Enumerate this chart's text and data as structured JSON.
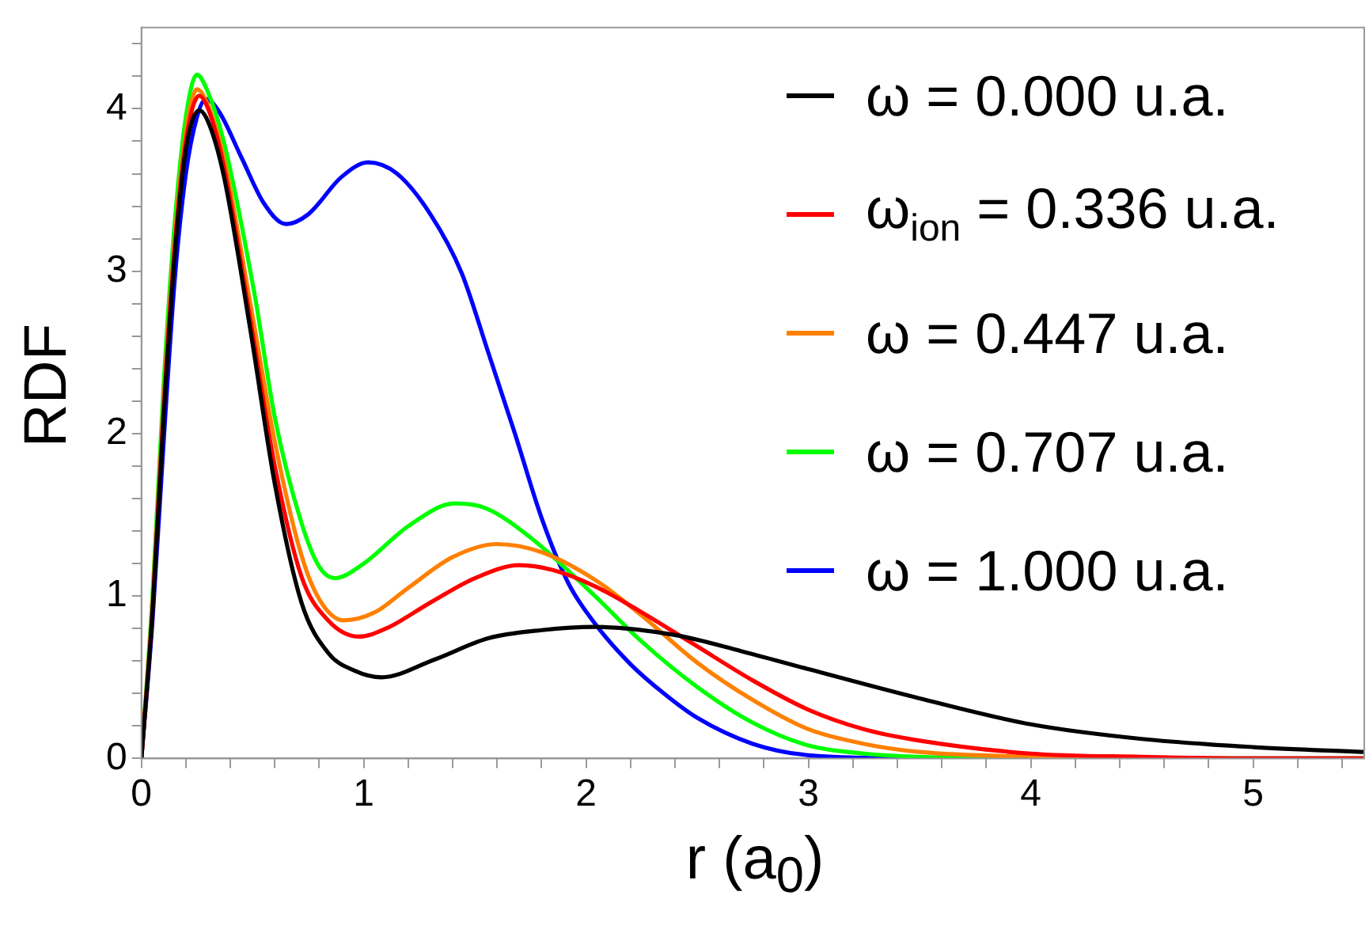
{
  "chart_data": {
    "type": "line",
    "xlabel": "r (a$_{0}$)",
    "ylabel": "RDF",
    "xlim": [
      0,
      5.5
    ],
    "ylim": [
      0,
      4.5
    ],
    "xticks": [
      0,
      {
        "value": 0.2,
        "label": null
      },
      {
        "value": 0.4,
        "label": null
      },
      {
        "value": 0.6,
        "label": null
      },
      {
        "value": 0.8,
        "label": null
      },
      1,
      {
        "value": 1.2,
        "label": null
      },
      {
        "value": 1.4,
        "label": null
      },
      {
        "value": 1.6,
        "label": null
      },
      {
        "value": 1.8,
        "label": null
      },
      2,
      {
        "value": 2.2,
        "label": null
      },
      {
        "value": 2.4,
        "label": null
      },
      {
        "value": 2.6,
        "label": null
      },
      {
        "value": 2.8,
        "label": null
      },
      3,
      {
        "value": 3.2,
        "label": null
      },
      {
        "value": 3.4,
        "label": null
      },
      {
        "value": 3.6,
        "label": null
      },
      {
        "value": 3.8,
        "label": null
      },
      4,
      {
        "value": 4.2,
        "label": null
      },
      {
        "value": 4.4,
        "label": null
      },
      {
        "value": 4.6,
        "label": null
      },
      {
        "value": 4.8,
        "label": null
      },
      5,
      {
        "value": 5.2,
        "label": null
      },
      {
        "value": 5.4,
        "label": null
      }
    ],
    "yticks": [
      0,
      {
        "value": 0.2,
        "label": null
      },
      {
        "value": 0.4,
        "label": null
      },
      {
        "value": 0.6,
        "label": null
      },
      {
        "value": 0.8,
        "label": null
      },
      1,
      {
        "value": 1.2,
        "label": null
      },
      {
        "value": 1.4,
        "label": null
      },
      {
        "value": 1.6,
        "label": null
      },
      {
        "value": 1.8,
        "label": null
      },
      2,
      {
        "value": 2.2,
        "label": null
      },
      {
        "value": 2.4,
        "label": null
      },
      {
        "value": 2.6,
        "label": null
      },
      {
        "value": 2.8,
        "label": null
      },
      3,
      {
        "value": 3.2,
        "label": null
      },
      {
        "value": 3.4,
        "label": null
      },
      {
        "value": 3.6,
        "label": null
      },
      {
        "value": 3.8,
        "label": null
      },
      4,
      {
        "value": 4.2,
        "label": null
      },
      {
        "value": 4.4,
        "label": null
      }
    ],
    "legend": "top right",
    "marker": "none",
    "line_style": "solid",
    "series": [
      {
        "name": "ω = 0.000 u.a.",
        "color": "#000000",
        "x": [
          0,
          0.05,
          0.1,
          0.15,
          0.2,
          0.26,
          0.3,
          0.37,
          0.49,
          0.6,
          0.72,
          0.84,
          0.96,
          1.08,
          1.32,
          1.56,
          1.8,
          2.04,
          2.4,
          2.7,
          3.0,
          3.5,
          4.0,
          4.5,
          5.0,
          5.5
        ],
        "values": [
          0,
          0.9,
          2.1,
          3.1,
          3.75,
          3.99,
          3.92,
          3.59,
          2.64,
          1.69,
          0.96,
          0.65,
          0.54,
          0.5,
          0.61,
          0.74,
          0.79,
          0.81,
          0.76,
          0.66,
          0.55,
          0.37,
          0.21,
          0.12,
          0.07,
          0.04
        ]
      },
      {
        "name": "ω$_{ion}$ = 0.336 u.a.",
        "color": "#ff0000",
        "x": [
          0,
          0.05,
          0.1,
          0.15,
          0.2,
          0.26,
          0.3,
          0.37,
          0.49,
          0.6,
          0.72,
          0.84,
          0.98,
          1.1,
          1.3,
          1.5,
          1.7,
          1.85,
          2.04,
          2.25,
          2.5,
          2.75,
          3.0,
          3.25,
          3.5,
          4.0,
          4.5,
          5.0,
          5.5
        ],
        "values": [
          0,
          0.92,
          2.15,
          3.15,
          3.8,
          4.08,
          4.0,
          3.65,
          2.7,
          1.8,
          1.12,
          0.85,
          0.75,
          0.8,
          0.96,
          1.11,
          1.19,
          1.16,
          1.06,
          0.9,
          0.69,
          0.48,
          0.3,
          0.18,
          0.11,
          0.03,
          0.01,
          0,
          0
        ]
      },
      {
        "name": "ω = 0.447 u.a.",
        "color": "#ff8000",
        "x": [
          0,
          0.05,
          0.1,
          0.15,
          0.2,
          0.25,
          0.3,
          0.37,
          0.49,
          0.6,
          0.72,
          0.8,
          0.91,
          1.05,
          1.2,
          1.4,
          1.6,
          1.8,
          2.04,
          2.25,
          2.5,
          2.75,
          3.0,
          3.25,
          3.5,
          4.0,
          4.5,
          5.5
        ],
        "values": [
          0,
          0.95,
          2.2,
          3.2,
          3.85,
          4.12,
          4.02,
          3.7,
          2.8,
          1.95,
          1.25,
          0.98,
          0.85,
          0.9,
          1.05,
          1.24,
          1.32,
          1.27,
          1.1,
          0.88,
          0.59,
          0.36,
          0.18,
          0.09,
          0.04,
          0.01,
          0,
          0
        ]
      },
      {
        "name": "ω = 0.707 u.a.",
        "color": "#00ff00",
        "x": [
          0,
          0.05,
          0.1,
          0.15,
          0.2,
          0.25,
          0.3,
          0.37,
          0.51,
          0.6,
          0.72,
          0.8,
          0.87,
          1.0,
          1.2,
          1.41,
          1.55,
          1.75,
          2.04,
          2.25,
          2.5,
          2.75,
          3.0,
          3.25,
          3.5,
          4.0,
          5.5
        ],
        "values": [
          0,
          1.0,
          2.3,
          3.3,
          3.95,
          4.21,
          4.1,
          3.8,
          2.85,
          2.1,
          1.45,
          1.18,
          1.11,
          1.2,
          1.43,
          1.57,
          1.54,
          1.36,
          1.0,
          0.72,
          0.44,
          0.22,
          0.08,
          0.03,
          0.01,
          0,
          0
        ]
      },
      {
        "name": "ω = 1.000 u.a.",
        "color": "#0000ff",
        "x": [
          0,
          0.05,
          0.1,
          0.15,
          0.2,
          0.25,
          0.29,
          0.35,
          0.45,
          0.55,
          0.65,
          0.75,
          0.9,
          1.02,
          1.15,
          1.3,
          1.44,
          1.56,
          1.68,
          1.8,
          1.92,
          2.04,
          2.2,
          2.35,
          2.5,
          2.75,
          3.0,
          3.5,
          5.5
        ],
        "values": [
          0,
          0.85,
          1.95,
          2.95,
          3.6,
          3.95,
          4.06,
          3.98,
          3.7,
          3.42,
          3.29,
          3.35,
          3.58,
          3.67,
          3.6,
          3.35,
          2.99,
          2.5,
          2.0,
          1.48,
          1.08,
          0.83,
          0.58,
          0.4,
          0.25,
          0.09,
          0.02,
          0,
          0
        ]
      }
    ]
  }
}
